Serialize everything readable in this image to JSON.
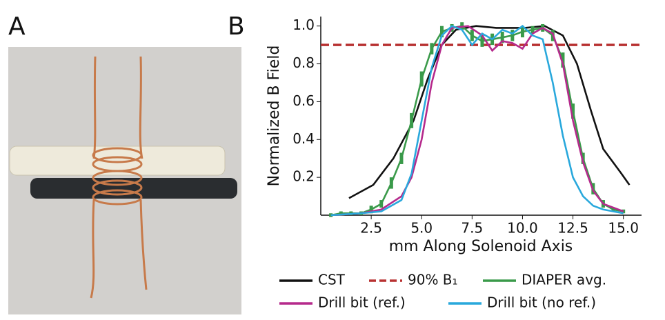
{
  "panel_labels": [
    "A",
    "B"
  ],
  "chart_data": {
    "type": "line",
    "xlabel": "mm Along Solenoid Axis",
    "ylabel": "Normalized B Field",
    "xlim": [
      0,
      15.9
    ],
    "ylim": [
      0,
      1.05
    ],
    "xticks": [
      2.5,
      {
        "value": 5,
        "label": "5.0"
      },
      7.5,
      {
        "value": 10,
        "label": "10.0"
      },
      12.5,
      {
        "value": 15,
        "label": "15.0"
      }
    ],
    "yticks": [
      0.2,
      0.4,
      0.6,
      0.8,
      {
        "value": 1,
        "label": "1.0"
      }
    ],
    "grid": false,
    "reference_line": {
      "name": "90% B₁",
      "value": 0.9,
      "color": "#b83232"
    },
    "series": [
      {
        "name": "CST",
        "color": "#111111",
        "x": [
          1.4,
          2.6,
          3.6,
          4.6,
          5.3,
          6,
          6.7,
          7.7,
          8.7,
          10.1,
          11.1,
          12,
          12.7,
          13.4,
          14,
          14.9,
          15.3
        ],
        "values": [
          0.09,
          0.16,
          0.3,
          0.5,
          0.72,
          0.9,
          0.98,
          1.0,
          0.99,
          0.99,
          1.0,
          0.95,
          0.8,
          0.55,
          0.35,
          0.22,
          0.16
        ]
      },
      {
        "name": "DIAPER avg.",
        "color": "#3a9a4a",
        "x": [
          0.5,
          1,
          1.5,
          2,
          2.5,
          3,
          3.5,
          4,
          4.5,
          5,
          5.5,
          6,
          6.5,
          7,
          7.5,
          8,
          8.5,
          9,
          9.5,
          10,
          10.5,
          11,
          11.5,
          12,
          12.5,
          13,
          13.5,
          14,
          14.5,
          15
        ],
        "values": [
          0,
          0.01,
          0.01,
          0.01,
          0.03,
          0.06,
          0.17,
          0.3,
          0.5,
          0.72,
          0.88,
          0.97,
          0.99,
          1.0,
          0.95,
          0.92,
          0.93,
          0.94,
          0.95,
          0.97,
          0.98,
          0.99,
          0.95,
          0.82,
          0.55,
          0.3,
          0.14,
          0.06,
          0.03,
          0.02
        ],
        "errors": [
          0.01,
          0.01,
          0.01,
          0.01,
          0.02,
          0.02,
          0.03,
          0.03,
          0.04,
          0.04,
          0.03,
          0.03,
          0.02,
          0.02,
          0.03,
          0.03,
          0.03,
          0.03,
          0.03,
          0.03,
          0.02,
          0.02,
          0.03,
          0.04,
          0.04,
          0.03,
          0.03,
          0.02,
          0.01,
          0.01
        ]
      },
      {
        "name": "Drill bit (ref.)",
        "color": "#b52a8c",
        "x": [
          0.5,
          2,
          3,
          4,
          4.5,
          5,
          5.5,
          6,
          6.5,
          7.3,
          8,
          8.5,
          9,
          9.5,
          10,
          10.5,
          11,
          11.5,
          12,
          12.5,
          13,
          13.5,
          14,
          15
        ],
        "values": [
          0,
          0.01,
          0.03,
          0.1,
          0.2,
          0.4,
          0.7,
          0.9,
          0.99,
          1.0,
          0.95,
          0.87,
          0.92,
          0.91,
          0.88,
          0.96,
          0.99,
          0.96,
          0.8,
          0.5,
          0.28,
          0.13,
          0.06,
          0.02
        ]
      },
      {
        "name": "Drill bit (no ref.)",
        "color": "#29a8dc",
        "x": [
          0.5,
          2,
          3,
          4,
          4.5,
          5,
          5.5,
          6,
          6.5,
          7,
          7.5,
          8,
          8.5,
          9,
          9.5,
          10,
          10.5,
          11,
          11.5,
          12,
          12.5,
          13,
          13.5,
          14,
          15
        ],
        "values": [
          0,
          0.01,
          0.02,
          0.08,
          0.22,
          0.5,
          0.78,
          0.95,
          1.0,
          0.98,
          0.9,
          0.96,
          0.93,
          0.98,
          0.96,
          1.0,
          0.95,
          0.93,
          0.7,
          0.42,
          0.2,
          0.1,
          0.05,
          0.03,
          0.01
        ]
      }
    ]
  }
}
